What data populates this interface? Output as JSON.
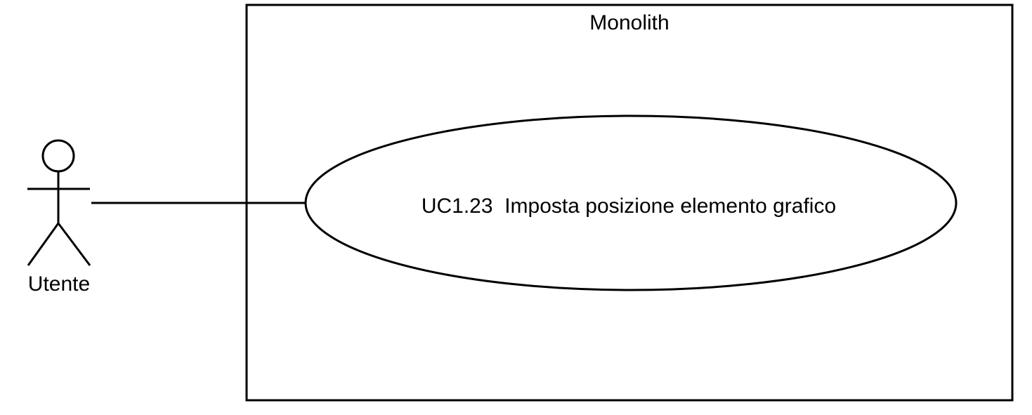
{
  "diagram": {
    "type": "uml-use-case",
    "system": {
      "name": "Monolith"
    },
    "actors": [
      {
        "id": "actor-utente",
        "name": "Utente"
      }
    ],
    "use_cases": [
      {
        "id": "uc1-23",
        "label": "UC1.23  Imposta posizione elemento grafico"
      }
    ],
    "associations": [
      {
        "from": "actor-utente",
        "to": "uc1-23"
      }
    ]
  }
}
